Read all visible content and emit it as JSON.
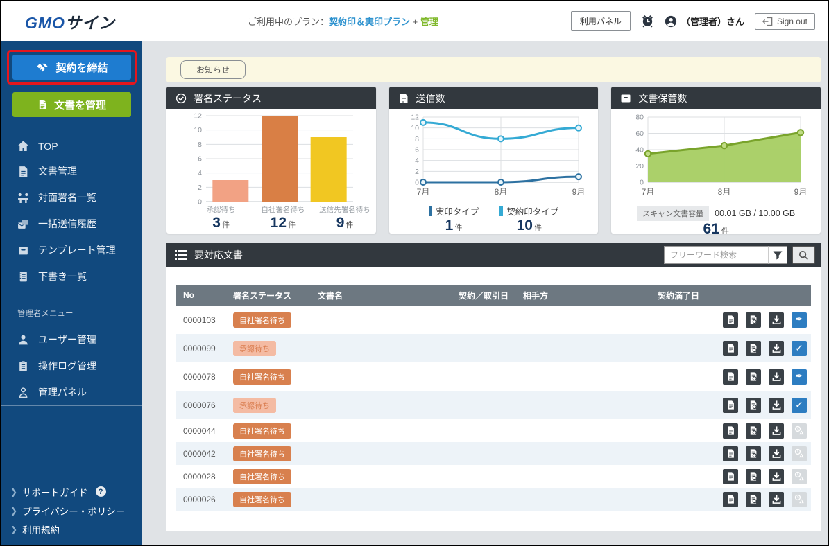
{
  "header": {
    "logo_gmo": "GMO",
    "logo_sign": "サイン",
    "plan_prefix": "ご利用中のプラン：",
    "plan_name": "契約印＆実印プラン",
    "plan_plus": "+",
    "plan_admin": "管理",
    "usage_panel_label": "利用パネル",
    "user_name": "（管理者）さん",
    "signout_label": "Sign out"
  },
  "sidebar": {
    "contract_button": "契約を締結",
    "manage_button": "文書を管理",
    "menu": [
      {
        "label": "TOP",
        "icon": "home-icon"
      },
      {
        "label": "文書管理",
        "icon": "document-icon"
      },
      {
        "label": "対面署名一覧",
        "icon": "face-to-face-sign-icon"
      },
      {
        "label": "一括送信履歴",
        "icon": "bulk-send-icon"
      },
      {
        "label": "テンプレート管理",
        "icon": "template-icon"
      },
      {
        "label": "下書き一覧",
        "icon": "draft-icon"
      }
    ],
    "admin_section_label": "管理者メニュー",
    "admin_menu": [
      {
        "label": "ユーザー管理",
        "icon": "user-icon"
      },
      {
        "label": "操作ログ管理",
        "icon": "operation-log-icon"
      },
      {
        "label": "管理パネル",
        "icon": "admin-panel-icon"
      }
    ],
    "footer_links": [
      "サポートガイド",
      "プライバシー・ポリシー",
      "利用規約"
    ]
  },
  "notice": {
    "label": "お知らせ"
  },
  "cards": [
    {
      "title": "署名ステータス",
      "icon": "check-circle-icon"
    },
    {
      "title": "送信数",
      "icon": "sent-document-icon"
    },
    {
      "title": "文書保管数",
      "icon": "storage-box-icon"
    }
  ],
  "chart_data": [
    {
      "type": "bar",
      "title": "署名ステータス",
      "categories": [
        "承認待ち",
        "自社署名待ち",
        "送信先署名待ち"
      ],
      "values": [
        3,
        12,
        9
      ],
      "counts": [
        "3",
        "12",
        "9"
      ],
      "unit": "件",
      "colors": [
        "#f2a284",
        "#d97f45",
        "#f1c722"
      ],
      "ylim": [
        0,
        12
      ],
      "yticks": [
        0,
        2,
        4,
        6,
        8,
        10,
        12
      ],
      "grid": "horizontal"
    },
    {
      "type": "line",
      "title": "送信数",
      "x": [
        "7月",
        "8月",
        "9月"
      ],
      "series": [
        {
          "name": "実印タイプ",
          "values": [
            0,
            0,
            1
          ],
          "color": "#2d71a1",
          "count": "1"
        },
        {
          "name": "契約印タイプ",
          "values": [
            11,
            8,
            10
          ],
          "color": "#35aad4",
          "count": "10"
        }
      ],
      "unit": "件",
      "ylim": [
        0,
        12
      ],
      "yticks": [
        0,
        2,
        4,
        6,
        8,
        10,
        12
      ],
      "grid": "both",
      "legend_position": "bottom"
    },
    {
      "type": "area",
      "title": "文書保管数",
      "x": [
        "7月",
        "8月",
        "9月"
      ],
      "values": [
        35,
        45,
        61
      ],
      "count": "61",
      "unit": "件",
      "color": "#79a32b",
      "fill": "#a6cd62",
      "ylim": [
        0,
        80
      ],
      "yticks": [
        0,
        20,
        40,
        60,
        80
      ],
      "grid": "both",
      "storage_label": "スキャン文書容量",
      "storage_value": "00.01 GB / 10.00 GB"
    }
  ],
  "table": {
    "title": "要対応文書",
    "search_placeholder": "フリーワード検索",
    "columns": [
      "No",
      "署名ステータス",
      "文書名",
      "契約／取引日",
      "相手方",
      "契約満了日"
    ],
    "rows": [
      {
        "no": "0000103",
        "status": "自社署名待ち",
        "status_style": "solid",
        "doc_name": "",
        "contract_date": "",
        "partner": "",
        "end_date": "",
        "actions": [
          "doc",
          "preview",
          "download",
          "sign"
        ]
      },
      {
        "no": "0000099",
        "status": "承認待ち",
        "status_style": "soft",
        "doc_name": "",
        "contract_date": "",
        "partner": "",
        "end_date": "",
        "actions": [
          "doc",
          "preview",
          "download",
          "approve"
        ]
      },
      {
        "no": "0000078",
        "status": "自社署名待ち",
        "status_style": "solid",
        "doc_name": "",
        "contract_date": "",
        "partner": "",
        "end_date": "",
        "actions": [
          "doc",
          "preview",
          "download",
          "sign"
        ]
      },
      {
        "no": "0000076",
        "status": "承認待ち",
        "status_style": "soft",
        "doc_name": "",
        "contract_date": "",
        "partner": "",
        "end_date": "",
        "actions": [
          "doc",
          "preview",
          "download",
          "approve"
        ]
      },
      {
        "no": "0000044",
        "status": "自社署名待ち",
        "status_style": "solid",
        "doc_name": "",
        "contract_date": "",
        "partner": "",
        "end_date": "",
        "actions": [
          "doc",
          "preview",
          "download",
          "expired"
        ]
      },
      {
        "no": "0000042",
        "status": "自社署名待ち",
        "status_style": "solid",
        "doc_name": "",
        "contract_date": "",
        "partner": "",
        "end_date": "",
        "actions": [
          "doc",
          "preview",
          "download",
          "expired"
        ]
      },
      {
        "no": "0000028",
        "status": "自社署名待ち",
        "status_style": "solid",
        "doc_name": "",
        "contract_date": "",
        "partner": "",
        "end_date": "",
        "actions": [
          "doc",
          "preview",
          "download",
          "expired"
        ]
      },
      {
        "no": "0000026",
        "status": "自社署名待ち",
        "status_style": "solid",
        "doc_name": "",
        "contract_date": "",
        "partner": "",
        "end_date": "",
        "actions": [
          "doc",
          "preview",
          "download",
          "expired"
        ]
      }
    ]
  }
}
